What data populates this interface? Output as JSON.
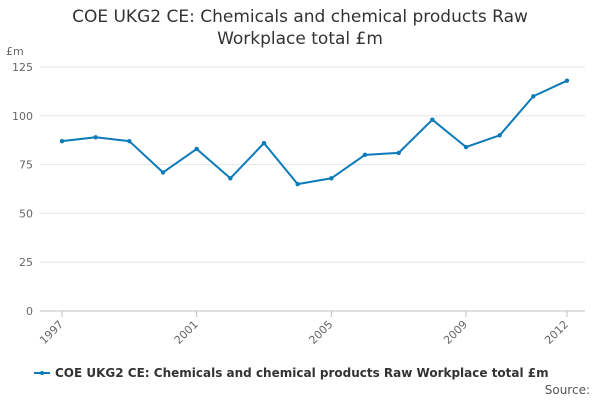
{
  "chart_data": {
    "type": "line",
    "title": "COE UKG2 CE: Chemicals and chemical products Raw Workplace total £m",
    "unit_label": "£m",
    "x": [
      1997,
      1998,
      1999,
      2000,
      2001,
      2002,
      2003,
      2004,
      2005,
      2006,
      2007,
      2008,
      2009,
      2010,
      2011,
      2012
    ],
    "series": [
      {
        "name": "COE UKG2 CE: Chemicals and chemical products Raw Workplace total £m",
        "values": [
          87,
          89,
          87,
          71,
          83,
          68,
          86,
          65,
          68,
          80,
          81,
          98,
          84,
          90,
          110,
          118
        ]
      }
    ],
    "x_tick_labels": [
      "1997",
      "2001",
      "2005",
      "2009",
      "2012"
    ],
    "y_ticks": [
      0,
      25,
      50,
      75,
      100,
      125
    ],
    "ylim": [
      0,
      125
    ],
    "xlim": [
      1997,
      2012
    ],
    "grid": true,
    "legend_position": "bottom",
    "source_label": "Source:",
    "colors": {
      "series": "#0a7ab8",
      "grid": "#e6e6e6",
      "axis": "#c0c0c0",
      "tick_text": "#666666"
    }
  }
}
